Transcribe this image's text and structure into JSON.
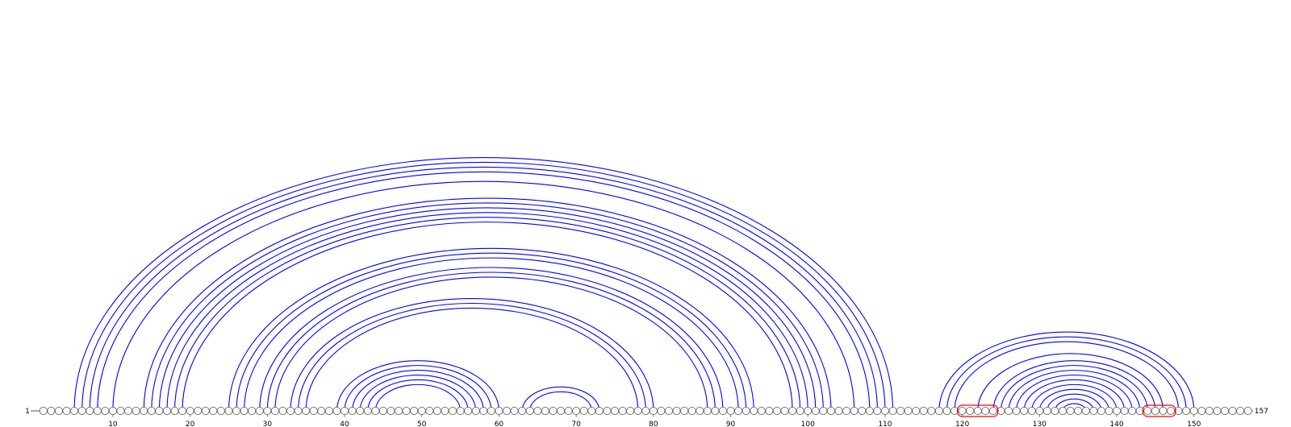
{
  "sequence": {
    "length": 157,
    "start_label": "1",
    "end_label": "157",
    "tick_labels": [
      "10",
      "20",
      "30",
      "40",
      "50",
      "60",
      "70",
      "80",
      "90",
      "100",
      "110",
      "120",
      "130",
      "140",
      "150"
    ]
  },
  "pairs": [
    [
      5,
      111
    ],
    [
      6,
      110
    ],
    [
      7,
      109
    ],
    [
      8,
      108
    ],
    [
      10,
      106
    ],
    [
      14,
      103
    ],
    [
      15,
      102
    ],
    [
      16,
      101
    ],
    [
      17,
      100
    ],
    [
      18,
      99
    ],
    [
      19,
      98
    ],
    [
      25,
      93
    ],
    [
      26,
      92
    ],
    [
      27,
      91
    ],
    [
      29,
      89
    ],
    [
      30,
      88
    ],
    [
      31,
      87
    ],
    [
      33,
      80
    ],
    [
      34,
      79
    ],
    [
      35,
      78
    ],
    [
      39,
      60
    ],
    [
      40,
      59
    ],
    [
      41,
      58
    ],
    [
      42,
      57
    ],
    [
      43,
      56
    ],
    [
      44,
      55
    ],
    [
      63,
      73
    ],
    [
      64,
      72
    ],
    [
      117,
      150
    ],
    [
      118,
      149
    ],
    [
      119,
      148
    ],
    [
      122,
      146
    ],
    [
      124,
      145
    ],
    [
      125,
      144
    ],
    [
      126,
      143
    ],
    [
      127,
      142
    ],
    [
      128,
      141
    ],
    [
      129,
      140
    ],
    [
      130,
      139
    ],
    [
      131,
      138
    ],
    [
      132,
      137
    ],
    [
      133,
      136
    ]
  ],
  "highlight_groups": [
    [
      120,
      124
    ],
    [
      144,
      147
    ]
  ],
  "colors": {
    "arc": "#0000ff",
    "highlight": "#ff0000",
    "node_stroke": "#555555",
    "node_fill": "#ffffff",
    "text": "#000000"
  }
}
